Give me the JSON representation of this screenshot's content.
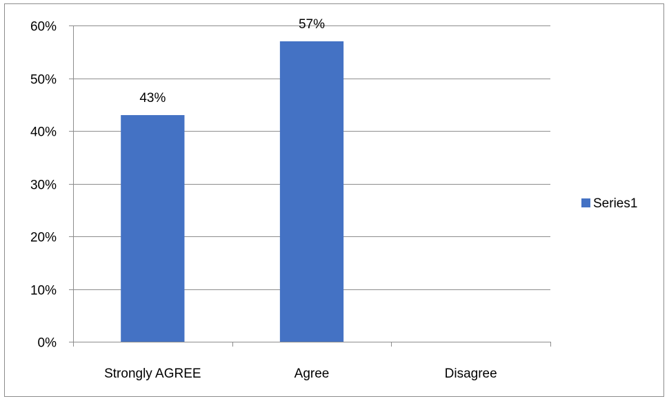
{
  "chart_data": {
    "type": "bar",
    "categories": [
      "Strongly AGREE",
      "Agree",
      "Disagree"
    ],
    "series": [
      {
        "name": "Series1",
        "values": [
          0.43,
          0.57,
          0
        ],
        "labels": [
          "43%",
          "57%",
          null
        ]
      }
    ],
    "ylim": [
      0,
      0.6
    ],
    "yticks": [
      0,
      0.1,
      0.2,
      0.3,
      0.4,
      0.5,
      0.6
    ],
    "ytick_labels": [
      "0%",
      "10%",
      "20%",
      "30%",
      "40%",
      "50%",
      "60%"
    ],
    "grid": true,
    "legend_position": "right",
    "colors": {
      "bar": "#4472C4",
      "grid": "#8c8c8c",
      "axis": "#8c8c8c"
    }
  }
}
